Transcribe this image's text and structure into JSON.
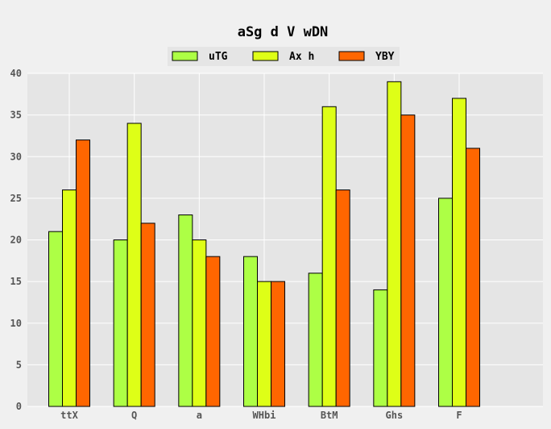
{
  "chart_data": {
    "type": "bar",
    "title": "aSg d V wDN",
    "xlabel": "",
    "ylabel": "",
    "categories": [
      "ttX",
      "Q",
      "a",
      "WHbi",
      "BtM",
      "Ghs",
      "F"
    ],
    "series": [
      {
        "name": "uTG",
        "color": "#adff45",
        "values": [
          21,
          20,
          23,
          18,
          16,
          14,
          25
        ]
      },
      {
        "name": "Ax h",
        "color": "#deff17",
        "values": [
          26,
          34,
          20,
          15,
          36,
          39,
          37
        ]
      },
      {
        "name": "YBY",
        "color": "#ff6600",
        "values": [
          32,
          22,
          18,
          15,
          26,
          35,
          31
        ]
      }
    ],
    "ylim": [
      0,
      40
    ],
    "yticks": [
      0,
      5,
      10,
      15,
      20,
      25,
      30,
      35,
      40
    ],
    "grid": true,
    "legend_position": "top-center",
    "plot_background": "#e5e5e5",
    "figure_background": "#f0f0f0"
  }
}
